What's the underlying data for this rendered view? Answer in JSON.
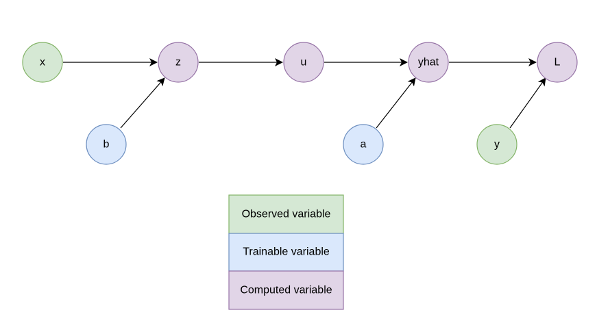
{
  "diagram": {
    "title": "",
    "nodes": [
      {
        "id": "x",
        "label": "x",
        "kind": "observed"
      },
      {
        "id": "z",
        "label": "z",
        "kind": "computed"
      },
      {
        "id": "u",
        "label": "u",
        "kind": "computed"
      },
      {
        "id": "yhat",
        "label": "yhat",
        "kind": "computed"
      },
      {
        "id": "L",
        "label": "L",
        "kind": "computed"
      },
      {
        "id": "b",
        "label": "b",
        "kind": "trainable"
      },
      {
        "id": "a",
        "label": "a",
        "kind": "trainable"
      },
      {
        "id": "y",
        "label": "y",
        "kind": "observed"
      }
    ],
    "edges": [
      {
        "from": "x",
        "to": "z"
      },
      {
        "from": "b",
        "to": "z"
      },
      {
        "from": "z",
        "to": "u"
      },
      {
        "from": "u",
        "to": "yhat"
      },
      {
        "from": "a",
        "to": "yhat"
      },
      {
        "from": "yhat",
        "to": "L"
      },
      {
        "from": "y",
        "to": "L"
      }
    ]
  },
  "legend": {
    "items": [
      {
        "kind": "observed",
        "label": "Observed variable"
      },
      {
        "kind": "trainable",
        "label": "Trainable variable"
      },
      {
        "kind": "computed",
        "label": "Computed variable"
      }
    ]
  },
  "colors": {
    "observed": {
      "fill": "#d5e8d4",
      "stroke": "#82b366"
    },
    "trainable": {
      "fill": "#dae8fc",
      "stroke": "#6c8ebf"
    },
    "computed": {
      "fill": "#e1d5e7",
      "stroke": "#9673a6"
    },
    "edge": "#000000",
    "text": "#000000"
  }
}
